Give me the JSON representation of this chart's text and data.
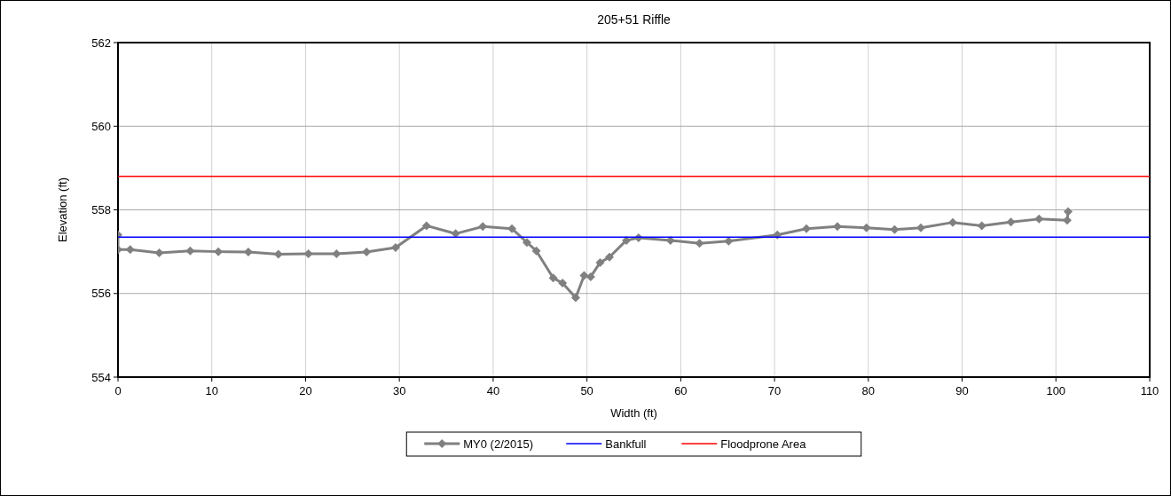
{
  "chart_data": {
    "type": "line",
    "title": "205+51 Riffle",
    "xlabel": "Width (ft)",
    "ylabel": "Elevation (ft)",
    "xlim": [
      0,
      110
    ],
    "xticks": [
      0,
      10,
      20,
      30,
      40,
      50,
      60,
      70,
      80,
      90,
      100,
      110
    ],
    "ylim": [
      554,
      562
    ],
    "yticks": [
      554,
      556,
      558,
      560,
      562
    ],
    "grid": true,
    "legend": "bottom",
    "series": [
      {
        "name": "MY0 (2/2015)",
        "color": "#808080",
        "marker": "diamond",
        "x": [
          0,
          0,
          1.3,
          4.4,
          7.7,
          10.7,
          13.9,
          17.1,
          20.3,
          23.3,
          26.5,
          29.6,
          32.9,
          36.0,
          38.9,
          42.0,
          43.6,
          44.6,
          46.4,
          47.4,
          48.8,
          49.7,
          50.4,
          51.4,
          52.4,
          54.2,
          55.5,
          58.9,
          62.0,
          65.1,
          70.3,
          73.4,
          76.7,
          79.8,
          82.8,
          85.6,
          89.0,
          92.1,
          95.2,
          98.2,
          101.2,
          101.3
        ],
        "values": [
          557.4,
          557.05,
          557.05,
          556.97,
          557.02,
          557.0,
          556.99,
          556.94,
          556.95,
          556.95,
          556.99,
          557.1,
          557.62,
          557.43,
          557.6,
          557.55,
          557.22,
          557.02,
          556.37,
          556.25,
          555.9,
          556.43,
          556.4,
          556.74,
          556.87,
          557.27,
          557.33,
          557.27,
          557.2,
          557.25,
          557.4,
          557.55,
          557.6,
          557.57,
          557.53,
          557.57,
          557.7,
          557.62,
          557.71,
          557.78,
          557.75,
          557.96
        ]
      },
      {
        "name": "Bankfull",
        "color": "#0000ff",
        "marker": "none",
        "x": [
          0,
          110
        ],
        "values": [
          557.35,
          557.35
        ]
      },
      {
        "name": "Floodprone Area",
        "color": "#ff0000",
        "marker": "none",
        "x": [
          0,
          110
        ],
        "values": [
          558.8,
          558.8
        ]
      }
    ]
  }
}
